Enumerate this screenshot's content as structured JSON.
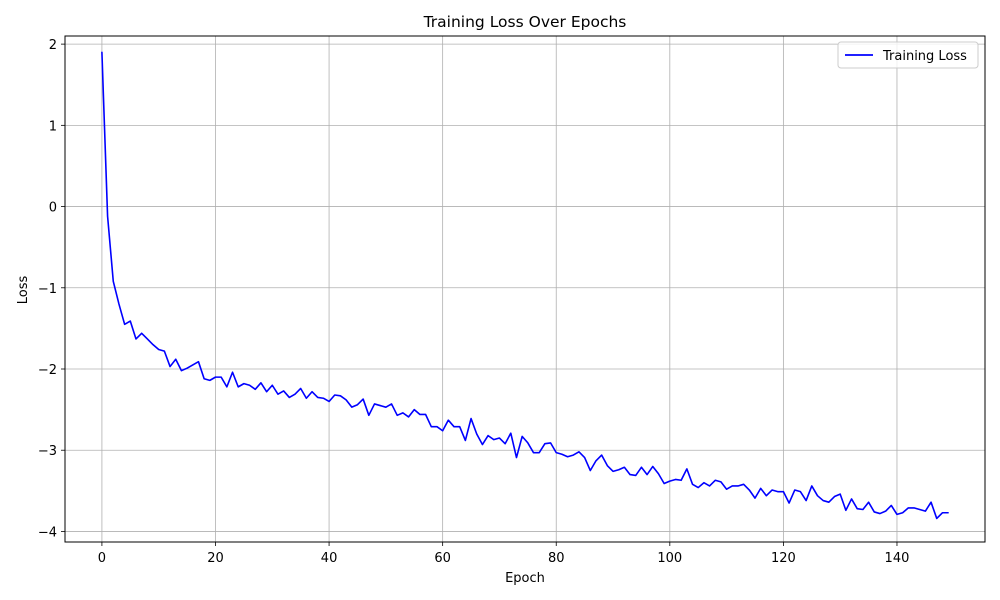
{
  "chart_data": {
    "type": "line",
    "title": "Training Loss Over Epochs",
    "xlabel": "Epoch",
    "ylabel": "Loss",
    "xlim": [
      -6.5,
      155.5
    ],
    "ylim": [
      -4.13,
      2.1
    ],
    "xticks": [
      0,
      20,
      40,
      60,
      80,
      100,
      120,
      140
    ],
    "yticks": [
      2,
      1,
      0,
      -1,
      -2,
      -3,
      -4
    ],
    "ytick_labels": [
      "2",
      "1",
      "0",
      "−1",
      "−2",
      "−3",
      "−4"
    ],
    "grid": true,
    "legend_position": "top-right",
    "series": [
      {
        "name": "Training Loss",
        "color": "#0000ff",
        "x": [
          0,
          1,
          2,
          3,
          4,
          5,
          6,
          7,
          8,
          9,
          10,
          11,
          12,
          13,
          14,
          15,
          16,
          17,
          18,
          19,
          20,
          21,
          22,
          23,
          24,
          25,
          26,
          27,
          28,
          29,
          30,
          31,
          32,
          33,
          34,
          35,
          36,
          37,
          38,
          39,
          40,
          41,
          42,
          43,
          44,
          45,
          46,
          47,
          48,
          49,
          50,
          51,
          52,
          53,
          54,
          55,
          56,
          57,
          58,
          59,
          60,
          61,
          62,
          63,
          64,
          65,
          66,
          67,
          68,
          69,
          70,
          71,
          72,
          73,
          74,
          75,
          76,
          77,
          78,
          79,
          80,
          81,
          82,
          83,
          84,
          85,
          86,
          87,
          88,
          89,
          90,
          91,
          92,
          93,
          94,
          95,
          96,
          97,
          98,
          99,
          100,
          101,
          102,
          103,
          104,
          105,
          106,
          107,
          108,
          109,
          110,
          111,
          112,
          113,
          114,
          115,
          116,
          117,
          118,
          119,
          120,
          121,
          122,
          123,
          124,
          125,
          126,
          127,
          128,
          129,
          130,
          131,
          132,
          133,
          134,
          135,
          136,
          137,
          138,
          139,
          140,
          141,
          142,
          143,
          144,
          145,
          146,
          147,
          148,
          149
        ],
        "values": [
          1.9,
          -0.12,
          -0.92,
          -1.2,
          -1.45,
          -1.41,
          -1.63,
          -1.56,
          -1.63,
          -1.7,
          -1.76,
          -1.78,
          -1.97,
          -1.88,
          -2.02,
          -1.99,
          -1.95,
          -1.91,
          -2.12,
          -2.14,
          -2.1,
          -2.1,
          -2.22,
          -2.04,
          -2.22,
          -2.18,
          -2.2,
          -2.25,
          -2.17,
          -2.28,
          -2.2,
          -2.31,
          -2.27,
          -2.35,
          -2.31,
          -2.24,
          -2.36,
          -2.28,
          -2.35,
          -2.36,
          -2.4,
          -2.32,
          -2.33,
          -2.38,
          -2.47,
          -2.44,
          -2.37,
          -2.57,
          -2.43,
          -2.45,
          -2.47,
          -2.43,
          -2.57,
          -2.54,
          -2.59,
          -2.5,
          -2.56,
          -2.56,
          -2.71,
          -2.71,
          -2.76,
          -2.63,
          -2.71,
          -2.71,
          -2.88,
          -2.61,
          -2.8,
          -2.93,
          -2.82,
          -2.87,
          -2.85,
          -2.92,
          -2.79,
          -3.09,
          -2.83,
          -2.91,
          -3.03,
          -3.03,
          -2.92,
          -2.91,
          -3.03,
          -3.05,
          -3.08,
          -3.06,
          -3.02,
          -3.09,
          -3.25,
          -3.13,
          -3.06,
          -3.19,
          -3.26,
          -3.24,
          -3.21,
          -3.3,
          -3.31,
          -3.21,
          -3.3,
          -3.2,
          -3.29,
          -3.41,
          -3.38,
          -3.36,
          -3.37,
          -3.23,
          -3.42,
          -3.46,
          -3.4,
          -3.44,
          -3.37,
          -3.39,
          -3.48,
          -3.44,
          -3.44,
          -3.42,
          -3.49,
          -3.59,
          -3.47,
          -3.56,
          -3.49,
          -3.51,
          -3.51,
          -3.65,
          -3.49,
          -3.51,
          -3.62,
          -3.44,
          -3.56,
          -3.62,
          -3.64,
          -3.57,
          -3.54,
          -3.74,
          -3.6,
          -3.72,
          -3.73,
          -3.64,
          -3.76,
          -3.78,
          -3.75,
          -3.68,
          -3.79,
          -3.77,
          -3.71,
          -3.71,
          -3.73,
          -3.75,
          -3.64,
          -3.84,
          -3.77,
          -3.77
        ]
      }
    ]
  }
}
